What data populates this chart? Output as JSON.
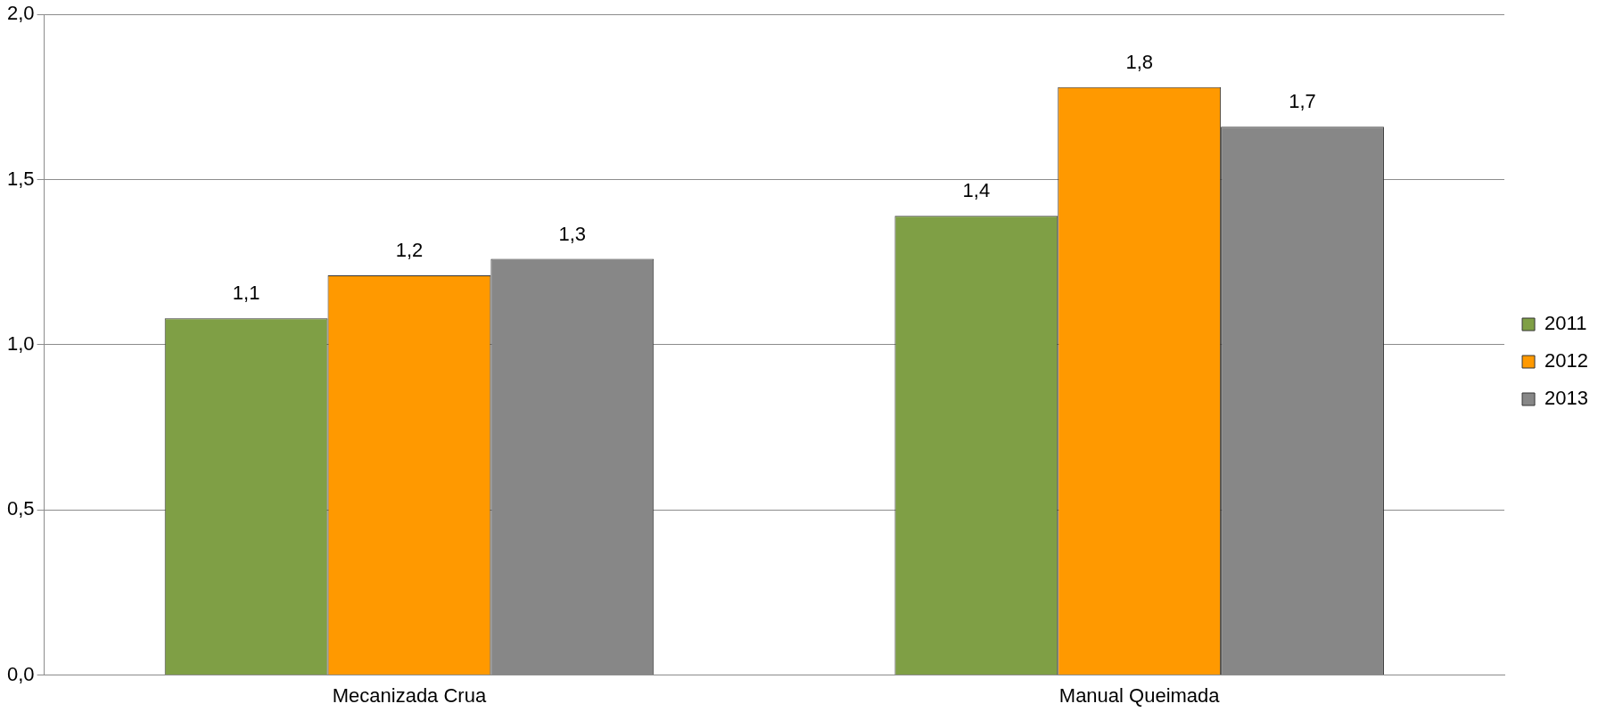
{
  "chart_data": {
    "type": "bar",
    "categories": [
      "Mecanizada Crua",
      "Manual Queimada"
    ],
    "series": [
      {
        "name": "2011",
        "color": "#7f9f45",
        "values": [
          1.08,
          1.39
        ],
        "value_labels": [
          "1,1",
          "1,4"
        ]
      },
      {
        "name": "2012",
        "color": "#ff9900",
        "values": [
          1.21,
          1.78
        ],
        "value_labels": [
          "1,2",
          "1,8"
        ]
      },
      {
        "name": "2013",
        "color": "#878787",
        "values": [
          1.26,
          1.66
        ],
        "value_labels": [
          "1,3",
          "1,7"
        ]
      }
    ],
    "ylim": [
      0,
      2
    ],
    "yticks": [
      {
        "value": 0,
        "label": "0,0"
      },
      {
        "value": 0.5,
        "label": "0,5"
      },
      {
        "value": 1,
        "label": "1,0"
      },
      {
        "value": 1.5,
        "label": "1,5"
      },
      {
        "value": 2,
        "label": "2,0"
      }
    ],
    "grid": "y",
    "legend": "right"
  }
}
